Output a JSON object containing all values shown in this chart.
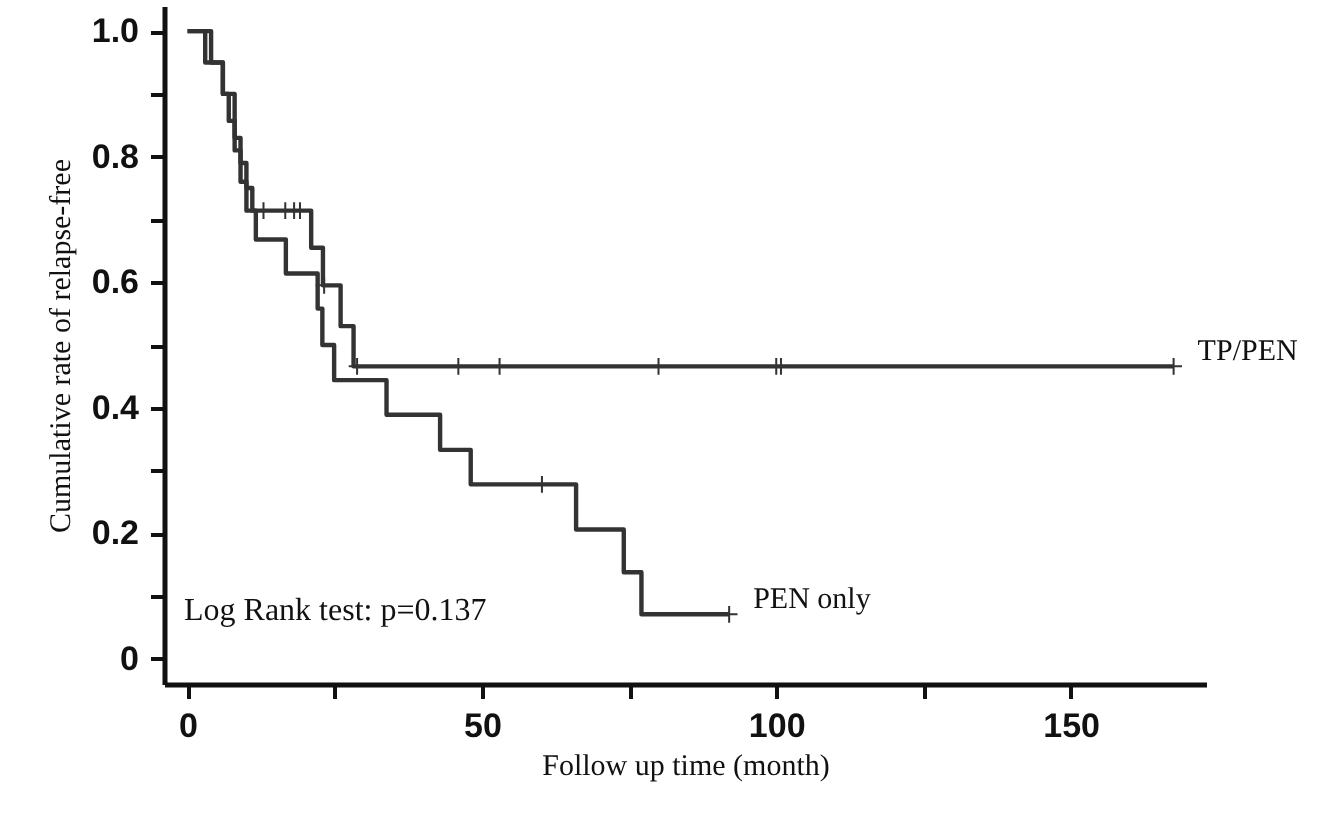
{
  "chart_data": {
    "type": "step",
    "xlabel": "Follow up time (month)",
    "ylabel": "Cumulative rate of relapse-free",
    "annotations": [
      "Log Rank test: p=0.137"
    ],
    "xlim": [
      -4,
      173
    ],
    "ylim": [
      -0.04,
      1.04
    ],
    "xticks": [
      0,
      {
        "value": 25,
        "label": null
      },
      50,
      {
        "value": 75,
        "label": null
      },
      100,
      {
        "value": 125,
        "label": null
      },
      150
    ],
    "yticks": [
      {
        "value": 0,
        "label": "0"
      },
      {
        "value": 0.1,
        "label": null
      },
      0.2,
      {
        "value": 0.3,
        "label": null
      },
      0.4,
      {
        "value": 0.5,
        "label": null
      },
      0.6,
      {
        "value": 0.7,
        "label": null
      },
      0.8,
      {
        "value": 0.9,
        "label": null
      },
      {
        "value": 1,
        "label": "1.0"
      }
    ],
    "grid": false,
    "legend": "right",
    "line_style": "solid",
    "series": [
      {
        "name": "TP/PEN",
        "color": "#333333",
        "x": [
          0,
          4,
          6,
          8,
          9,
          10,
          11,
          21,
          23,
          26,
          28.2,
          167.5
        ],
        "values": [
          1.0,
          0.95,
          0.9,
          0.83,
          0.79,
          0.75,
          0.714,
          0.655,
          0.595,
          0.53,
          0.466,
          0.466
        ]
      },
      {
        "color": "#333333",
        "type": "scatter",
        "marker": "cross",
        "x": [
          12.9,
          16.6,
          18.1,
          19.1,
          23.2,
          28.8,
          46,
          53,
          80,
          100,
          100.8,
          167.5
        ],
        "values": [
          0.714,
          0.714,
          0.714,
          0.714,
          0.595,
          0.466,
          0.466,
          0.466,
          0.466,
          0.466,
          0.466,
          0.466
        ]
      },
      {
        "name": "PEN only",
        "color": "#333333",
        "x": [
          0,
          3,
          6,
          7,
          8,
          9,
          10,
          11.6,
          16.7,
          22.1,
          22.9,
          24.9,
          33.8,
          42.9,
          48.1,
          66,
          74.1,
          77.1,
          92
        ],
        "values": [
          1.0,
          0.95,
          0.9,
          0.857,
          0.81,
          0.76,
          0.714,
          0.668,
          0.614,
          0.558,
          0.5,
          0.444,
          0.389,
          0.333,
          0.278,
          0.206,
          0.138,
          0.071,
          0.071
        ]
      },
      {
        "color": "#333333",
        "type": "scatter",
        "marker": "cross",
        "x": [
          60.2,
          92
        ],
        "values": [
          0.278,
          0.071
        ]
      }
    ]
  }
}
